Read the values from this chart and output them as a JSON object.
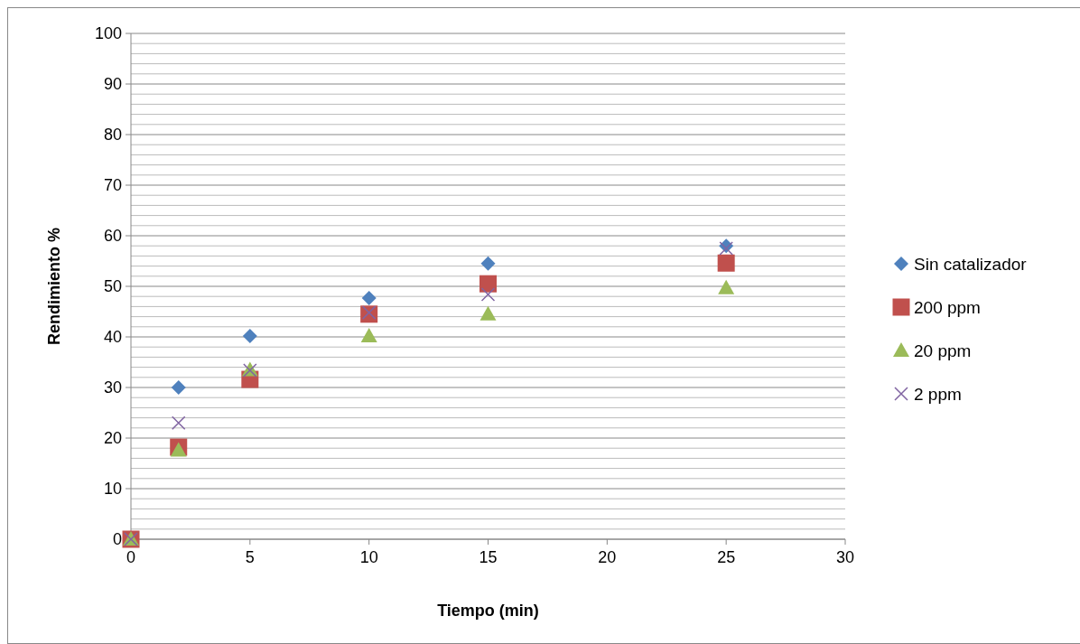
{
  "chart_data": {
    "type": "scatter",
    "xlabel": "Tiempo (min)",
    "ylabel": "Rendimiento %",
    "xlim": [
      0,
      30
    ],
    "xticks": [
      0,
      5,
      10,
      15,
      20,
      25,
      30
    ],
    "ylim": [
      0,
      100
    ],
    "yticks": [
      0,
      {
        "value": 2,
        "label": null
      },
      {
        "value": 4,
        "label": null
      },
      {
        "value": 6,
        "label": null
      },
      {
        "value": 8,
        "label": null
      },
      10,
      {
        "value": 12,
        "label": null
      },
      {
        "value": 14,
        "label": null
      },
      {
        "value": 16,
        "label": null
      },
      {
        "value": 18,
        "label": null
      },
      20,
      {
        "value": 22,
        "label": null
      },
      {
        "value": 24,
        "label": null
      },
      {
        "value": 26,
        "label": null
      },
      {
        "value": 28,
        "label": null
      },
      30,
      {
        "value": 32,
        "label": null
      },
      {
        "value": 34,
        "label": null
      },
      {
        "value": 36,
        "label": null
      },
      {
        "value": 38,
        "label": null
      },
      40,
      {
        "value": 42,
        "label": null
      },
      {
        "value": 44,
        "label": null
      },
      {
        "value": 46,
        "label": null
      },
      {
        "value": 48,
        "label": null
      },
      50,
      {
        "value": 52,
        "label": null
      },
      {
        "value": 54,
        "label": null
      },
      {
        "value": 56,
        "label": null
      },
      {
        "value": 58,
        "label": null
      },
      60,
      {
        "value": 62,
        "label": null
      },
      {
        "value": 64,
        "label": null
      },
      {
        "value": 66,
        "label": null
      },
      {
        "value": 68,
        "label": null
      },
      70,
      {
        "value": 72,
        "label": null
      },
      {
        "value": 74,
        "label": null
      },
      {
        "value": 76,
        "label": null
      },
      {
        "value": 78,
        "label": null
      },
      80,
      {
        "value": 82,
        "label": null
      },
      {
        "value": 84,
        "label": null
      },
      {
        "value": 86,
        "label": null
      },
      {
        "value": 88,
        "label": null
      },
      90,
      {
        "value": 92,
        "label": null
      },
      {
        "value": 94,
        "label": null
      },
      {
        "value": 96,
        "label": null
      },
      {
        "value": 98,
        "label": null
      },
      100
    ],
    "grid": "y",
    "legend": "right",
    "x": [
      0,
      2,
      5,
      10,
      15,
      25
    ],
    "series": [
      {
        "name": "Sin catalizador",
        "color": "#4f81bd",
        "marker": "diamond",
        "values": [
          null,
          30,
          40.2,
          47.7,
          54.5,
          58
        ]
      },
      {
        "name": "200 ppm",
        "color": "#c0504d",
        "marker": "square",
        "values": [
          0,
          18.2,
          31.6,
          44.5,
          50.5,
          54.6
        ]
      },
      {
        "name": "20 ppm",
        "color": "#9bbb59",
        "marker": "triangle",
        "values": [
          0,
          17.6,
          33.5,
          40.2,
          44.5,
          49.7
        ]
      },
      {
        "name": "2 ppm",
        "color": "#8064a2",
        "marker": "cross",
        "values": [
          0,
          23,
          33.4,
          44.8,
          48.4,
          57.5
        ]
      }
    ]
  }
}
